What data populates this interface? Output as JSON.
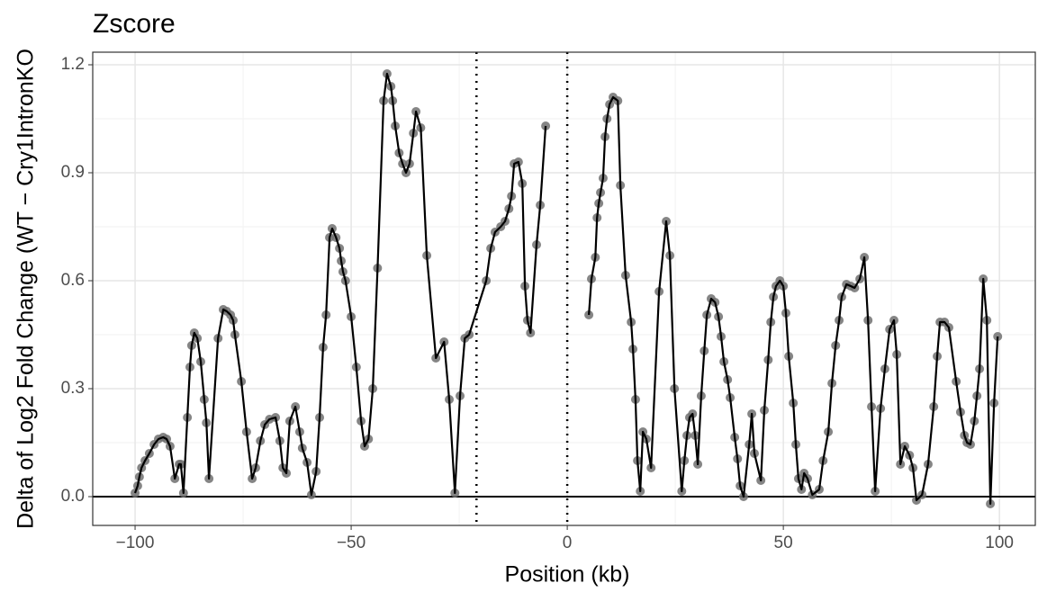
{
  "chart_data": {
    "type": "line",
    "title": "Zscore",
    "x_label": "Position (kb)",
    "y_label": "Delta of Log2 Fold Change (WT − Cry1IntronKO",
    "xlim": [
      -109.8,
      108.3
    ],
    "ylim": [
      -0.08,
      1.235
    ],
    "xticks": [
      {
        "value": -100,
        "label": "−100"
      },
      {
        "value": -50,
        "label": "−50"
      },
      0,
      50,
      100
    ],
    "yticks": [
      {
        "value": 0,
        "label": "0.0"
      },
      0.3,
      0.6,
      0.9,
      1.2
    ],
    "x_minor_grid": [
      -75,
      -25,
      25,
      75
    ],
    "y_minor_grid": [
      0.15,
      0.45,
      0.75,
      1.05
    ],
    "grid": true,
    "hline": 0,
    "vlines": [
      -21,
      0
    ],
    "line_color": "#000000",
    "point_color": "#707070",
    "x": [
      -100,
      -99.4,
      -99,
      -98.5,
      -97.7,
      -96.7,
      -95.6,
      -94.6,
      -93.5,
      -92.7,
      -91.9,
      -90.8,
      -89.8,
      -89.4,
      -88.8,
      -87.9,
      -87.3,
      -86.9,
      -86.3,
      -85.6,
      -84.8,
      -84,
      -83.5,
      -82.9,
      -80.8,
      -79.6,
      -78.8,
      -77.9,
      -77.3,
      -76.9,
      -75.4,
      -74.2,
      -72.9,
      -72.1,
      -71,
      -70,
      -68.9,
      -67.5,
      -66.5,
      -65.8,
      -65,
      -64.2,
      -62.9,
      -61.9,
      -61.3,
      -60.2,
      -59.2,
      -58.1,
      -57.3,
      -56.5,
      -55.8,
      -55,
      -54.4,
      -53.5,
      -52.7,
      -52.3,
      -51.9,
      -51.3,
      -50,
      -48.8,
      -47.7,
      -46.9,
      -46,
      -45,
      -43.9,
      -42.5,
      -41.7,
      -40.8,
      -40.4,
      -39.8,
      -38.9,
      -38.1,
      -37.3,
      -36.5,
      -35.6,
      -35,
      -33.9,
      -32.5,
      -30.4,
      -28.5,
      -27.3,
      -26,
      -24.8,
      -23.7,
      -22.7,
      -18.75,
      -17.7,
      -16.7,
      -15.4,
      -14.4,
      -13.5,
      -12.9,
      -12.3,
      -11.3,
      -10.4,
      -9.8,
      -9.2,
      -8.5,
      -7.1,
      -6.25,
      -5,
      null,
      5,
      5.6,
      6.5,
      6.9,
      7.3,
      7.7,
      8.3,
      8.75,
      9.2,
      9.8,
      10.6,
      11.7,
      12.3,
      13.5,
      14.8,
      15.2,
      15.8,
      16.25,
      16.9,
      17.5,
      18.3,
      19.4,
      21.25,
      22.9,
      23.75,
      24.8,
      26.5,
      27.1,
      27.7,
      28.3,
      29,
      29.6,
      30.2,
      31,
      31.7,
      32.3,
      33.3,
      34.2,
      35,
      35.6,
      36.25,
      37.1,
      37.7,
      38.75,
      39.4,
      40,
      40.8,
      42.1,
      42.7,
      43.3,
      44.8,
      45.6,
      46.5,
      47.1,
      47.7,
      48.3,
      49.2,
      50,
      50.6,
      51.25,
      52.3,
      52.9,
      53.5,
      54.2,
      54.8,
      55.6,
      56.7,
      58.3,
      59.2,
      60.4,
      61.25,
      62.1,
      62.9,
      63.5,
      64.6,
      65.6,
      66.5,
      67.7,
      68.75,
      69.6,
      70.4,
      71.25,
      72.5,
      73.5,
      74.6,
      75.6,
      76.25,
      77.1,
      78.1,
      79.2,
      80,
      80.8,
      82.1,
      83.5,
      84.8,
      85.6,
      86.25,
      87.3,
      88.3,
      90,
      91,
      91.9,
      92.5,
      93.3,
      94.2,
      94.8,
      95.4,
      96.25,
      97.1,
      97.9,
      98.75,
      99.6
    ],
    "values": [
      0.01,
      0.03,
      0.055,
      0.08,
      0.1,
      0.12,
      0.145,
      0.16,
      0.165,
      0.16,
      0.14,
      0.05,
      0.09,
      0.09,
      0.01,
      0.22,
      0.36,
      0.42,
      0.455,
      0.44,
      0.375,
      0.27,
      0.205,
      0.05,
      0.44,
      0.52,
      0.515,
      0.505,
      0.49,
      0.45,
      0.32,
      0.18,
      0.05,
      0.08,
      0.155,
      0.2,
      0.215,
      0.22,
      0.155,
      0.08,
      0.065,
      0.21,
      0.25,
      0.18,
      0.135,
      0.095,
      0.005,
      0.07,
      0.22,
      0.415,
      0.505,
      0.72,
      0.745,
      0.72,
      0.69,
      0.655,
      0.625,
      0.6,
      0.5,
      0.36,
      0.21,
      0.14,
      0.16,
      0.3,
      0.635,
      1.1,
      1.175,
      1.14,
      1.1,
      1.03,
      0.955,
      0.925,
      0.9,
      0.925,
      1.01,
      1.07,
      1.025,
      0.67,
      0.385,
      0.43,
      0.27,
      0.01,
      0.28,
      0.44,
      0.45,
      0.6,
      0.69,
      0.735,
      0.75,
      0.765,
      0.8,
      0.835,
      0.925,
      0.93,
      0.87,
      0.585,
      0.49,
      0.455,
      0.7,
      0.81,
      1.03,
      null,
      0.505,
      0.605,
      0.665,
      0.775,
      0.815,
      0.845,
      0.885,
      1.0,
      1.05,
      1.09,
      1.11,
      1.1,
      0.865,
      0.615,
      0.485,
      0.41,
      0.27,
      0.1,
      0.015,
      0.18,
      0.16,
      0.08,
      0.57,
      0.765,
      0.67,
      0.3,
      0.015,
      0.1,
      0.17,
      0.22,
      0.23,
      0.17,
      0.09,
      0.28,
      0.405,
      0.505,
      0.55,
      0.54,
      0.5,
      0.445,
      0.375,
      0.325,
      0.275,
      0.165,
      0.105,
      0.03,
      0.0,
      0.145,
      0.23,
      0.12,
      0.045,
      0.24,
      0.38,
      0.485,
      0.555,
      0.585,
      0.6,
      0.585,
      0.51,
      0.39,
      0.26,
      0.145,
      0.05,
      0.02,
      0.065,
      0.05,
      0.005,
      0.02,
      0.1,
      0.18,
      0.315,
      0.42,
      0.49,
      0.555,
      0.59,
      0.585,
      0.58,
      0.605,
      0.665,
      0.49,
      0.25,
      0.015,
      0.245,
      0.355,
      0.465,
      0.49,
      0.395,
      0.09,
      0.14,
      0.115,
      0.08,
      -0.01,
      0.005,
      0.09,
      0.25,
      0.39,
      0.485,
      0.485,
      0.47,
      0.32,
      0.235,
      0.17,
      0.15,
      0.145,
      0.21,
      0.28,
      0.355,
      0.605,
      0.49,
      -0.02,
      0.26,
      0.445
    ]
  }
}
